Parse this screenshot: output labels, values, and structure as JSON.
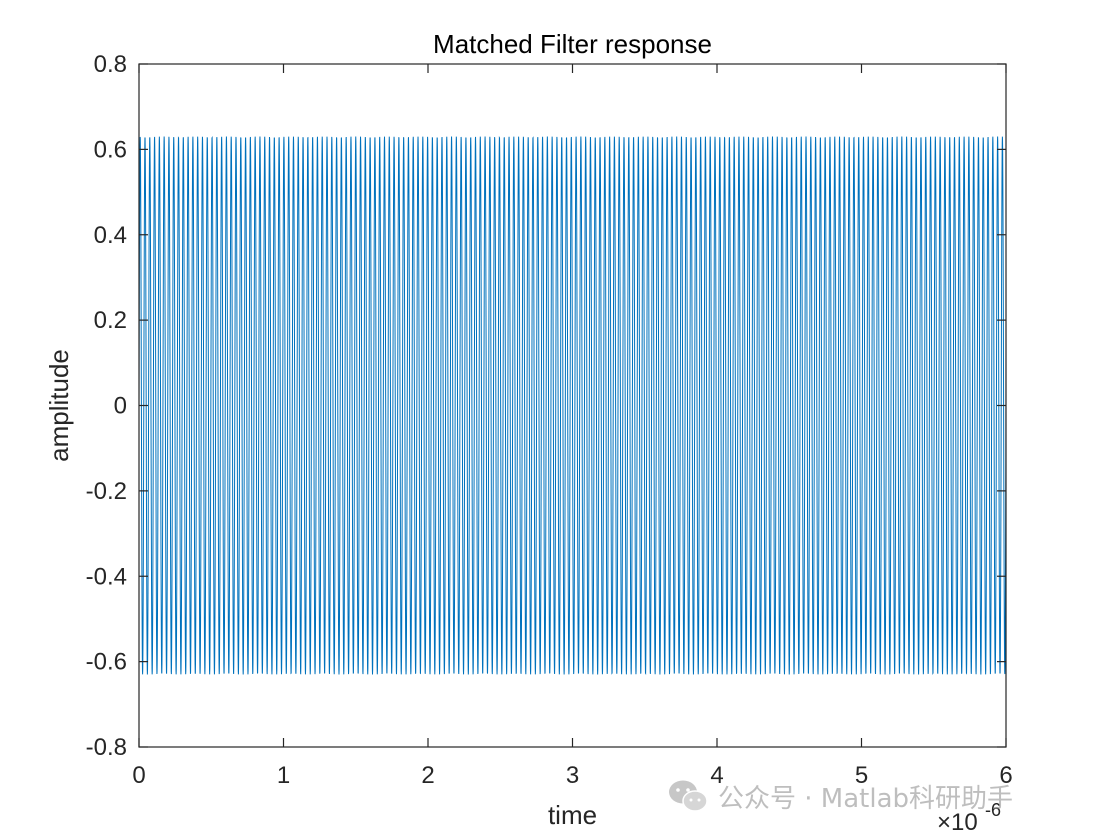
{
  "chart_data": {
    "type": "line",
    "title": "Matched Filter response",
    "xlabel": "time",
    "ylabel": "amplitude",
    "x_exponent_label": "×10",
    "x_exponent_power": "-6",
    "xlim": [
      0,
      6e-06
    ],
    "ylim": [
      -0.8,
      0.8
    ],
    "x_ticks": [
      0,
      1,
      2,
      3,
      4,
      5,
      6
    ],
    "x_tick_labels": [
      "0",
      "1",
      "2",
      "3",
      "4",
      "5",
      "6"
    ],
    "y_ticks": [
      -0.8,
      -0.6,
      -0.4,
      -0.2,
      0,
      0.2,
      0.4,
      0.6,
      0.8
    ],
    "y_tick_labels": [
      "-0.8",
      "-0.6",
      "-0.4",
      "-0.2",
      "0",
      "0.2",
      "0.4",
      "0.6",
      "0.8"
    ],
    "grid": false,
    "box": true,
    "series": [
      {
        "color": "#0072BD",
        "signal": "oscillation",
        "amplitude": 0.63,
        "cycles": 181,
        "x_start": 0,
        "x_end": 6e-06,
        "end_value": 0.14
      }
    ]
  },
  "watermark": {
    "text": "公众号 · Matlab科研助手",
    "icon": "wechat-icon"
  },
  "colors": {
    "line": "#0072BD",
    "axis": "#262626",
    "background": "#ffffff"
  }
}
